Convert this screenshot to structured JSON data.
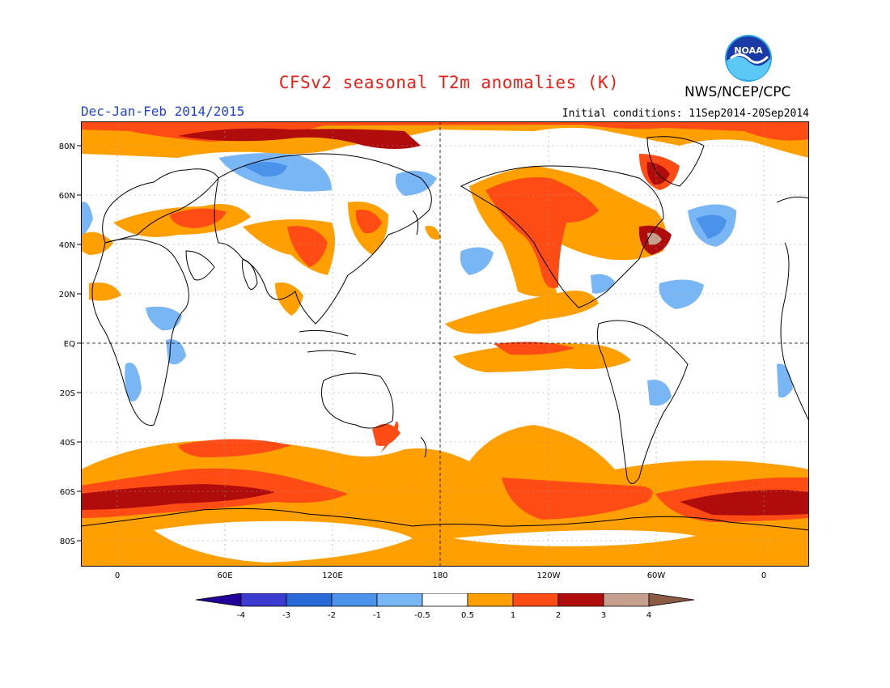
{
  "title": "CFSv2 seasonal T2m anomalies (K)",
  "agency": "NWS/NCEP/CPC",
  "logo_text": "NOAA",
  "season": "Dec-Jan-Feb 2014/2015",
  "initial_conditions": "Initial conditions: 11Sep2014-20Sep2014",
  "lat_labels": [
    "80N",
    "60N",
    "40N",
    "20N",
    "EQ",
    "20S",
    "40S",
    "60S",
    "80S"
  ],
  "lon_labels": [
    "0",
    "60E",
    "120E",
    "180",
    "120W",
    "60W",
    "0"
  ],
  "colorbar": {
    "labels": [
      "-4",
      "-3",
      "-2",
      "-1",
      "-0.5",
      "0.5",
      "1",
      "2",
      "3",
      "4"
    ],
    "colors": [
      "#22009a",
      "#3b3bd0",
      "#2a6ad8",
      "#4a92ea",
      "#79b6f5",
      "#ffffff",
      "#ff9f00",
      "#ff4b14",
      "#b00c0c",
      "#c79f8e",
      "#8a5a44"
    ]
  },
  "map_colors": {
    "ocean_land_bg": "#ffffff",
    "weak_warm": "#ff9f00",
    "warm": "#ff4b14",
    "strong_warm": "#b00c0c",
    "extreme_warm": "#c79f8e",
    "weak_cool": "#79b6f5",
    "cool": "#4a92ea",
    "strong_cool": "#2a6ad8",
    "coastline": "#000000",
    "grid": "#999999"
  }
}
